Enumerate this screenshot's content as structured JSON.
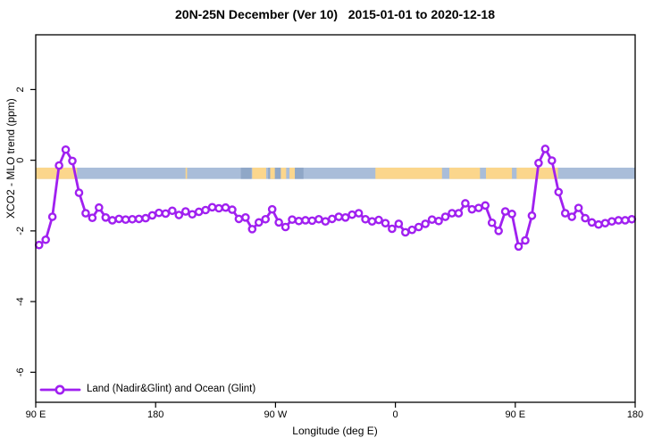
{
  "title": "20N-25N December (Ver 10)   2015-01-01 to 2020-12-18",
  "chart_data": {
    "type": "line",
    "title": "20N-25N December (Ver 10)   2015-01-01 to 2020-12-18",
    "xlabel": "Longitude (deg E)",
    "ylabel": "XCO2 - MLO trend (ppm)",
    "xlim": [
      90,
      540
    ],
    "ylim": [
      -6.85,
      3.55
    ],
    "grid": "off",
    "x_ticks": [
      {
        "value": 90,
        "label": "90 E"
      },
      {
        "value": 180,
        "label": "180"
      },
      {
        "value": 270,
        "label": "90 W"
      },
      {
        "value": 360,
        "label": "0"
      },
      {
        "value": 450,
        "label": "90 E"
      },
      {
        "value": 540,
        "label": "180"
      }
    ],
    "y_ticks": [
      {
        "value": 2,
        "label": "2"
      },
      {
        "value": 0,
        "label": "0"
      },
      {
        "value": -2,
        "label": "-2"
      },
      {
        "value": -4,
        "label": "-4"
      },
      {
        "value": -6,
        "label": "-6"
      }
    ],
    "legend": {
      "position": "bottom-left",
      "label": "Land (Nadir&Glint) and Ocean (Glint)"
    },
    "colors": {
      "series": "#a020f0",
      "marker_fill": "#ffffff",
      "ocean": "#a9bdd9",
      "land": "#fbd68c",
      "ocean_shade": "#8fa7c7",
      "axis": "#000000"
    },
    "map_band": {
      "description": "land/ocean strip for 20N-25N plotted along longitude",
      "value_top": -0.21,
      "value_bottom": -0.53,
      "land_segments_lon": [
        [
          90,
          121
        ],
        [
          202.5,
          203.6
        ],
        [
          252.5,
          263
        ],
        [
          266,
          269.5
        ],
        [
          274,
          278
        ],
        [
          280.5,
          284.5
        ],
        [
          345,
          395
        ],
        [
          400.5,
          423.5
        ],
        [
          428,
          447.5
        ],
        [
          451,
          482
        ]
      ],
      "shade_segments_lon": [
        [
          244,
          252
        ],
        [
          264.5,
          274
        ],
        [
          284.5,
          291
        ]
      ]
    },
    "series": [
      {
        "name": "Land (Nadir&Glint) and Ocean (Glint)",
        "x": [
          92.5,
          97.5,
          102.5,
          107.5,
          112.5,
          117.5,
          122.5,
          127.5,
          132.5,
          137.5,
          142.5,
          147.5,
          152.5,
          157.5,
          162.5,
          167.5,
          172.5,
          177.5,
          182.5,
          187.5,
          192.5,
          197.5,
          202.5,
          207.5,
          212.5,
          217.5,
          222.5,
          227.5,
          232.5,
          237.5,
          242.5,
          247.5,
          252.5,
          257.5,
          262.5,
          267.5,
          272.5,
          277.5,
          282.5,
          287.5,
          292.5,
          297.5,
          302.5,
          307.5,
          312.5,
          317.5,
          322.5,
          327.5,
          332.5,
          337.5,
          342.5,
          347.5,
          352.5,
          357.5,
          362.5,
          367.5,
          372.5,
          377.5,
          382.5,
          387.5,
          392.5,
          397.5,
          402.5,
          407.5,
          412.5,
          417.5,
          422.5,
          427.5,
          432.5,
          437.5,
          442.5,
          447.5,
          452.5,
          457.5,
          462.5,
          467.5,
          472.5,
          477.5,
          482.5,
          487.5,
          492.5,
          497.5,
          502.5,
          507.5,
          512.5,
          517.5,
          522.5,
          527.5,
          532.5,
          537.5
        ],
        "values": [
          -2.4,
          -2.25,
          -1.6,
          -0.15,
          0.3,
          -0.02,
          -0.92,
          -1.5,
          -1.63,
          -1.34,
          -1.62,
          -1.7,
          -1.66,
          -1.68,
          -1.67,
          -1.66,
          -1.64,
          -1.56,
          -1.49,
          -1.51,
          -1.43,
          -1.55,
          -1.45,
          -1.53,
          -1.46,
          -1.41,
          -1.33,
          -1.36,
          -1.34,
          -1.4,
          -1.66,
          -1.62,
          -1.95,
          -1.76,
          -1.67,
          -1.39,
          -1.76,
          -1.89,
          -1.68,
          -1.72,
          -1.7,
          -1.71,
          -1.67,
          -1.73,
          -1.66,
          -1.6,
          -1.62,
          -1.54,
          -1.5,
          -1.67,
          -1.73,
          -1.69,
          -1.78,
          -1.94,
          -1.8,
          -2.04,
          -1.97,
          -1.89,
          -1.8,
          -1.68,
          -1.72,
          -1.6,
          -1.5,
          -1.5,
          -1.22,
          -1.39,
          -1.35,
          -1.28,
          -1.77,
          -2.0,
          -1.45,
          -1.52,
          -2.44,
          -2.27,
          -1.57,
          -0.08,
          0.32,
          -0.01,
          -0.9,
          -1.5,
          -1.6,
          -1.35,
          -1.64,
          -1.76,
          -1.82,
          -1.78,
          -1.73,
          -1.7,
          -1.7,
          -1.67
        ]
      }
    ]
  }
}
